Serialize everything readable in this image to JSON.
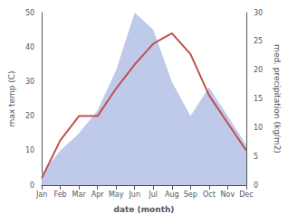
{
  "chart_data": {
    "type": "line",
    "xlabel": "date (month)",
    "ylabel": "max temp (C)",
    "y2label": "med. precipitation (kg/m2)",
    "categories": [
      "Jan",
      "Feb",
      "Mar",
      "Apr",
      "May",
      "Jun",
      "Jul",
      "Aug",
      "Sep",
      "Oct",
      "Nov",
      "Dec"
    ],
    "series": [
      {
        "type": "area",
        "color": "#b8c4e8",
        "axis": "y2",
        "values": [
          2,
          6,
          9,
          13,
          20,
          30,
          27,
          18,
          12,
          17,
          12,
          7
        ]
      },
      {
        "type": "line",
        "color": "#c0504d",
        "values": [
          2,
          13,
          20,
          20,
          28,
          35,
          41,
          44,
          38,
          26,
          18,
          10
        ]
      }
    ],
    "ylim": [
      0,
      50
    ],
    "yticks": [
      0,
      10,
      20,
      30,
      40,
      50
    ],
    "y2lim": [
      0,
      30
    ],
    "y2ticks": [
      0,
      5,
      10,
      15,
      20,
      25,
      30
    ],
    "grid": false
  }
}
